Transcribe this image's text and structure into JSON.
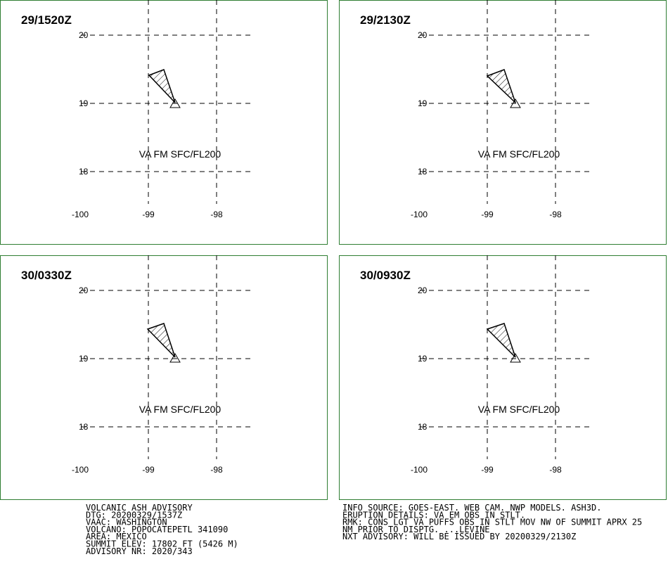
{
  "panels": [
    {
      "time": "29/1520Z",
      "label": "VA FM SFC/FL200",
      "lat_ticks": [
        20,
        19,
        18
      ],
      "lon_ticks": [
        -100,
        -99,
        -98
      ]
    },
    {
      "time": "29/2130Z",
      "label": "VA FM SFC/FL200",
      "lat_ticks": [
        20,
        19,
        18
      ],
      "lon_ticks": [
        -100,
        -99,
        -98
      ]
    },
    {
      "time": "30/0330Z",
      "label": "VA FM SFC/FL200",
      "lat_ticks": [
        20,
        19,
        18
      ],
      "lon_ticks": [
        -100,
        -99,
        -98
      ]
    },
    {
      "time": "30/0930Z",
      "label": "VA FM SFC/FL200",
      "lat_ticks": [
        20,
        19,
        18
      ],
      "lon_ticks": [
        -100,
        -99,
        -98
      ]
    }
  ],
  "advisory": [
    "VOLCANIC ASH ADVISORY",
    "DTG: 20200329/1537Z",
    "VAAC: WASHINGTON",
    "VOLCANO: POPOCATEPETL 341090",
    "AREA: MEXICO",
    "SUMMIT ELEV: 17802 FT (5426 M)",
    "ADVISORY NR: 2020/343"
  ],
  "remarks": [
    "INFO SOURCE: GOES-EAST. WEB CAM. NWP MODELS. ASH3D.",
    "ERUPTION DETAILS: VA EM OBS IN STLT.",
    "RMK: CONS LGT VA PUFFS OBS IN STLT MOV NW OF SUMMIT APRX 25",
    "NM PRIOR TO DISPTG. ...LEVINE",
    "NXT ADVISORY: WILL BE ISSUED BY 20200329/2130Z"
  ]
}
